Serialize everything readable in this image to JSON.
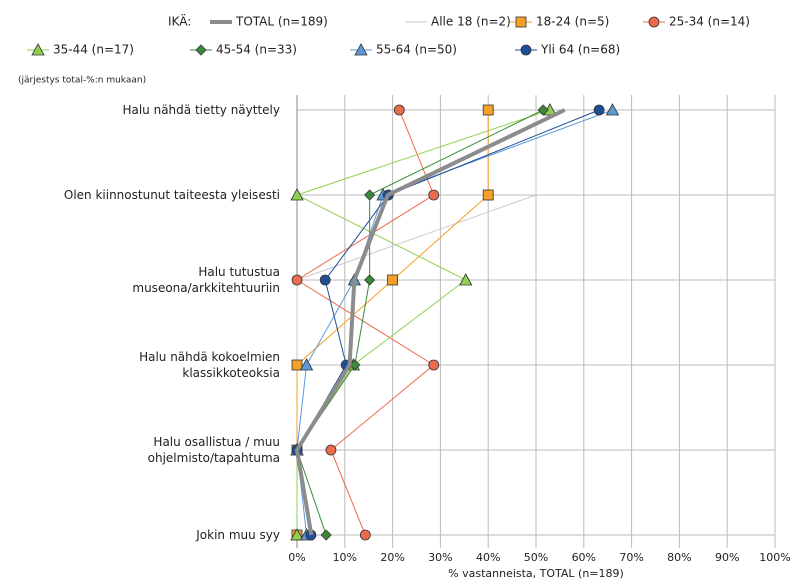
{
  "chart_data": {
    "type": "line",
    "legend_title": "IKÄ:",
    "subtitle": "(järjestys total-%:n mukaan)",
    "x_label": "% vastanneista, TOTAL (n=189)",
    "categories": [
      "Halu nähdä tietty näyttely",
      "Olen kiinnostunut taiteesta yleisesti",
      "Halu tutustua\nmuseona/arkkitehtuuriin",
      "Halu nähdä kokoelmien\nklassikkoteoksia",
      "Halu osallistua / muu\nohjelmisto/tapahtuma",
      "Jokin muu syy"
    ],
    "xlim": [
      0,
      100
    ],
    "xticks": [
      {
        "value": 0,
        "label": "0%"
      },
      {
        "value": 10,
        "label": "10%"
      },
      {
        "value": 20,
        "label": "20%"
      },
      {
        "value": 30,
        "label": "30%"
      },
      {
        "value": 40,
        "label": "40%"
      },
      {
        "value": 50,
        "label": "50%"
      },
      {
        "value": 60,
        "label": "60%"
      },
      {
        "value": 70,
        "label": "70%"
      },
      {
        "value": 80,
        "label": "80%"
      },
      {
        "value": 90,
        "label": "90%"
      },
      {
        "value": 100,
        "label": "100%"
      }
    ],
    "grid": true,
    "series": [
      {
        "name": "TOTAL (n=189)",
        "color": "#8c8c8c",
        "marker": "none",
        "line_width": 4,
        "values": [
          56,
          19,
          12,
          11,
          0,
          3
        ]
      },
      {
        "name": "Alle 18 (n=2)",
        "color": "#c9c9c9",
        "marker": "none",
        "line_width": 1,
        "values": [
          50,
          50,
          0,
          0,
          0,
          0
        ]
      },
      {
        "name": "18-24 (n=5)",
        "color": "#f5a028",
        "marker": "square",
        "line_width": 1,
        "values": [
          40,
          40,
          20,
          0,
          0,
          0
        ]
      },
      {
        "name": "25-34 (n=14)",
        "color": "#ee6a4c",
        "marker": "circle",
        "line_width": 1,
        "values": [
          21.4,
          28.6,
          0,
          28.6,
          7.1,
          14.3
        ]
      },
      {
        "name": "35-44 (n=17)",
        "color": "#92d050",
        "marker": "triangle",
        "line_width": 1,
        "values": [
          52.9,
          0,
          35.3,
          11.8,
          0,
          0
        ]
      },
      {
        "name": "45-54 (n=33)",
        "color": "#3a8a3a",
        "marker": "diamond",
        "line_width": 1,
        "values": [
          51.5,
          15.2,
          15.2,
          12.1,
          0,
          6.1
        ]
      },
      {
        "name": "55-64 (n=50)",
        "color": "#5b9bd5",
        "marker": "triangle",
        "line_width": 1,
        "values": [
          66,
          18,
          12,
          2,
          0,
          2
        ]
      },
      {
        "name": "Yli 64 (n=68)",
        "color": "#1f4e99",
        "marker": "circle",
        "line_width": 1,
        "values": [
          63.2,
          19.1,
          5.9,
          10.3,
          0,
          2.9
        ]
      }
    ]
  }
}
